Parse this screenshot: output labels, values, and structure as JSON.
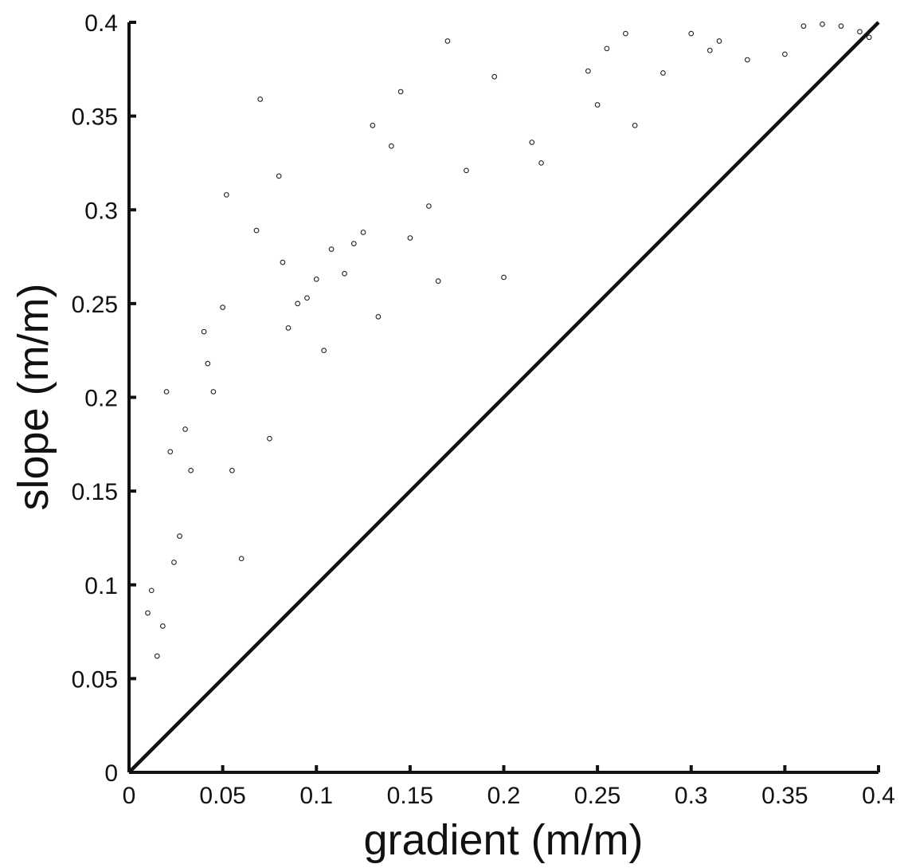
{
  "chart_data": {
    "type": "scatter",
    "title": "",
    "xlabel": "gradient (m/m)",
    "ylabel": "slope (m/m)",
    "xlim": [
      0,
      0.4
    ],
    "ylim": [
      0,
      0.4
    ],
    "xticks": [
      "0",
      "0.05",
      "0.1",
      "0.15",
      "0.2",
      "0.25",
      "0.3",
      "0.35",
      "0.4"
    ],
    "yticks": [
      "0",
      "0.05",
      "0.1",
      "0.15",
      "0.2",
      "0.25",
      "0.3",
      "0.35",
      "0.4"
    ],
    "grid": false,
    "legend": "none",
    "marker": "open-circle",
    "reference_line": {
      "x": [
        0,
        0.4
      ],
      "y": [
        0,
        0.4
      ]
    },
    "series": [
      {
        "points": [
          [
            0.02,
            0.203
          ],
          [
            0.022,
            0.171
          ],
          [
            0.027,
            0.126
          ],
          [
            0.03,
            0.183
          ],
          [
            0.033,
            0.161
          ],
          [
            0.04,
            0.235
          ],
          [
            0.042,
            0.218
          ],
          [
            0.045,
            0.203
          ],
          [
            0.05,
            0.248
          ],
          [
            0.052,
            0.308
          ],
          [
            0.055,
            0.161
          ],
          [
            0.06,
            0.114
          ],
          [
            0.068,
            0.289
          ],
          [
            0.07,
            0.359
          ],
          [
            0.075,
            0.178
          ],
          [
            0.08,
            0.318
          ],
          [
            0.082,
            0.272
          ],
          [
            0.085,
            0.237
          ],
          [
            0.09,
            0.25
          ],
          [
            0.095,
            0.253
          ],
          [
            0.1,
            0.263
          ],
          [
            0.104,
            0.225
          ],
          [
            0.108,
            0.279
          ],
          [
            0.115,
            0.266
          ],
          [
            0.12,
            0.282
          ],
          [
            0.125,
            0.288
          ],
          [
            0.13,
            0.345
          ],
          [
            0.133,
            0.243
          ],
          [
            0.14,
            0.334
          ],
          [
            0.145,
            0.363
          ],
          [
            0.15,
            0.285
          ],
          [
            0.16,
            0.302
          ],
          [
            0.165,
            0.262
          ],
          [
            0.17,
            0.39
          ],
          [
            0.18,
            0.321
          ],
          [
            0.195,
            0.371
          ],
          [
            0.2,
            0.264
          ],
          [
            0.215,
            0.336
          ],
          [
            0.22,
            0.325
          ],
          [
            0.245,
            0.374
          ],
          [
            0.25,
            0.356
          ],
          [
            0.255,
            0.386
          ],
          [
            0.265,
            0.394
          ],
          [
            0.27,
            0.345
          ],
          [
            0.285,
            0.373
          ],
          [
            0.3,
            0.394
          ],
          [
            0.31,
            0.385
          ],
          [
            0.315,
            0.39
          ],
          [
            0.33,
            0.38
          ],
          [
            0.35,
            0.383
          ],
          [
            0.36,
            0.398
          ],
          [
            0.37,
            0.399
          ],
          [
            0.38,
            0.398
          ],
          [
            0.39,
            0.395
          ],
          [
            0.395,
            0.392
          ],
          [
            0.01,
            0.085
          ],
          [
            0.012,
            0.097
          ],
          [
            0.015,
            0.062
          ],
          [
            0.018,
            0.078
          ],
          [
            0.024,
            0.112
          ]
        ]
      }
    ]
  }
}
